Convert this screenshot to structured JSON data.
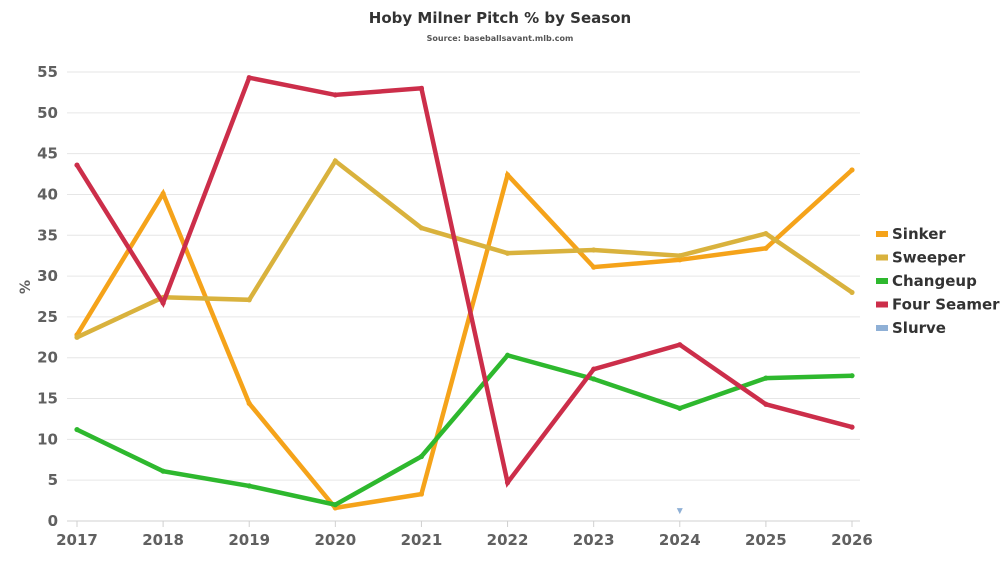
{
  "chart_data": {
    "type": "line",
    "title": "Hoby Milner Pitch % by Season",
    "subtitle": "Source: baseballsavant.mlb.com",
    "xlabel": "",
    "ylabel": "%",
    "ylim": [
      0,
      55
    ],
    "yticks": [
      "0",
      "5",
      "10",
      "15",
      "20",
      "25",
      "30",
      "35",
      "40",
      "45",
      "50",
      "55"
    ],
    "categories": [
      "2017",
      "2018",
      "2019",
      "2020",
      "2021",
      "2022",
      "2023",
      "2024",
      "2025",
      "2026"
    ],
    "grid": true,
    "legend_position": "right",
    "series": [
      {
        "name": "Sinker",
        "color": "#f5a31a",
        "values": [
          22.8,
          40.1,
          14.4,
          1.6,
          3.3,
          42.4,
          31.1,
          32.0,
          33.4,
          43.0
        ]
      },
      {
        "name": "Sweeper",
        "color": "#d9b23d",
        "values": [
          22.5,
          27.4,
          27.1,
          44.1,
          35.9,
          32.8,
          33.2,
          32.5,
          35.2,
          28.0
        ]
      },
      {
        "name": "Changeup",
        "color": "#2eb82e",
        "values": [
          11.2,
          6.1,
          4.3,
          2.0,
          7.9,
          20.3,
          17.4,
          13.8,
          17.5,
          17.8
        ]
      },
      {
        "name": "Four Seamer",
        "color": "#cc2e4a",
        "values": [
          43.6,
          26.7,
          54.3,
          52.2,
          53.0,
          4.7,
          18.6,
          21.6,
          14.3,
          11.5
        ]
      },
      {
        "name": "Slurve",
        "color": "#8fb0d6",
        "values": [
          null,
          null,
          null,
          null,
          null,
          null,
          null,
          0.6,
          null,
          null
        ]
      }
    ]
  }
}
